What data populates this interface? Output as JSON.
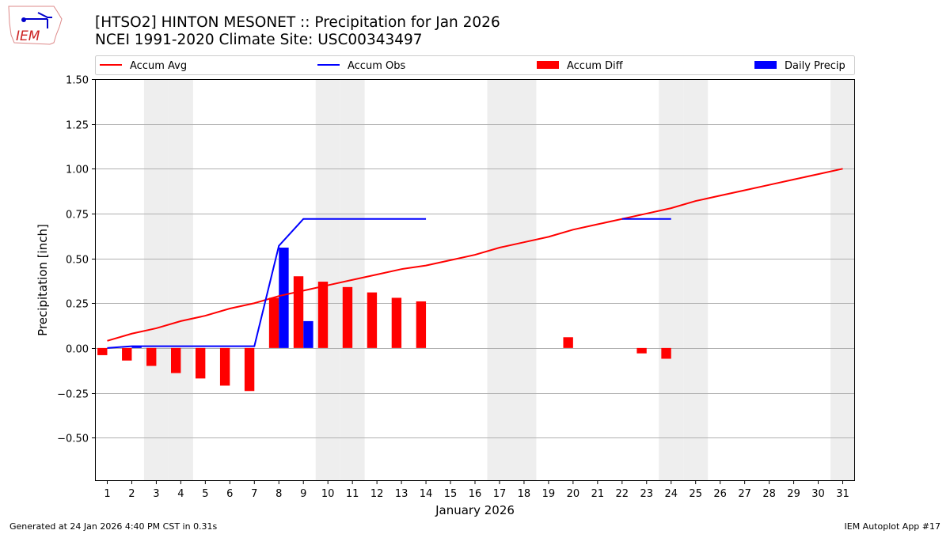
{
  "header": {
    "title_line1": "[HTSO2] HINTON MESONET :: Precipitation for Jan 2026",
    "title_line2": "NCEI 1991-2020 Climate Site: USC00343497",
    "logo_text": "IEM"
  },
  "footer": {
    "left": "Generated at 24 Jan 2026 4:40 PM CST in 0.31s",
    "right": "IEM Autoplot App #17"
  },
  "chart_data": {
    "type": "bar",
    "xlabel": "January 2026",
    "ylabel": "Precipitation [inch]",
    "ylim": [
      -0.742,
      1.5
    ],
    "xlim": [
      0.5,
      31.5
    ],
    "yticks": [
      -0.5,
      -0.25,
      0.0,
      0.25,
      0.5,
      0.75,
      1.0,
      1.25,
      1.5
    ],
    "ytick_labels": [
      "−0.50",
      "−0.25",
      "0.00",
      "0.25",
      "0.50",
      "0.75",
      "1.00",
      "1.25",
      "1.50"
    ],
    "xticks": [
      1,
      2,
      3,
      4,
      5,
      6,
      7,
      8,
      9,
      10,
      11,
      12,
      13,
      14,
      15,
      16,
      17,
      18,
      19,
      20,
      21,
      22,
      23,
      24,
      25,
      26,
      27,
      28,
      29,
      30,
      31
    ],
    "grid": "horizontal",
    "legend_placement": "top",
    "weekend_shading_days": [
      3,
      4,
      10,
      11,
      17,
      18,
      24,
      25,
      31
    ],
    "colors": {
      "avg": "#ff0000",
      "obs": "#0000ff",
      "diff": "#ff0000",
      "daily": "#0000ff",
      "shade": "#eeeeee",
      "grid": "#b0b0b0"
    },
    "series": [
      {
        "name": "Accum Avg",
        "kind": "line",
        "days": [
          1,
          2,
          3,
          4,
          5,
          6,
          7,
          8,
          9,
          10,
          11,
          12,
          13,
          14,
          15,
          16,
          17,
          18,
          19,
          20,
          21,
          22,
          23,
          24,
          25,
          26,
          27,
          28,
          29,
          30,
          31
        ],
        "values": [
          0.04,
          0.08,
          0.11,
          0.15,
          0.18,
          0.22,
          0.25,
          0.29,
          0.32,
          0.35,
          0.38,
          0.41,
          0.44,
          0.46,
          0.49,
          0.52,
          0.56,
          0.59,
          0.62,
          0.66,
          0.69,
          0.72,
          0.75,
          0.78,
          0.82,
          0.85,
          0.88,
          0.91,
          0.94,
          0.97,
          1.0
        ]
      },
      {
        "name": "Accum Obs",
        "kind": "line",
        "segments": [
          {
            "days": [
              1,
              2,
              3,
              4,
              5,
              6,
              7,
              8,
              9,
              10,
              11,
              12,
              13,
              14
            ],
            "values": [
              0.0,
              0.01,
              0.01,
              0.01,
              0.01,
              0.01,
              0.01,
              0.57,
              0.72,
              0.72,
              0.72,
              0.72,
              0.72,
              0.72
            ]
          },
          {
            "days": [
              22,
              23,
              24
            ],
            "values": [
              0.72,
              0.72,
              0.72
            ]
          }
        ]
      },
      {
        "name": "Accum Diff",
        "kind": "bar",
        "days": [
          1,
          2,
          3,
          4,
          5,
          6,
          7,
          8,
          9,
          10,
          11,
          12,
          13,
          14,
          20,
          23,
          24
        ],
        "values": [
          -0.04,
          -0.07,
          -0.1,
          -0.14,
          -0.17,
          -0.21,
          -0.24,
          0.28,
          0.4,
          0.37,
          0.34,
          0.31,
          0.28,
          0.26,
          0.06,
          -0.03,
          -0.06
        ]
      },
      {
        "name": "Daily Precip",
        "kind": "bar",
        "days": [
          2,
          8,
          9
        ],
        "values": [
          0.01,
          0.56,
          0.15
        ]
      }
    ]
  }
}
